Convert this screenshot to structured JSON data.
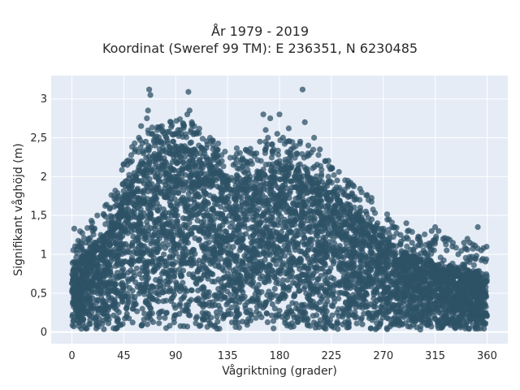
{
  "chart_data": {
    "type": "scatter",
    "title": "År 1979 - 2019",
    "subtitle": "Koordinat (Sweref 99 TM): E 236351, N 6230485",
    "xlabel": "Vågriktning (grader)",
    "ylabel": "Signifikant våghöjd (m)",
    "xlim": [
      -18,
      378
    ],
    "ylim": [
      -0.15,
      3.3
    ],
    "x_ticks": [
      0,
      45,
      90,
      135,
      180,
      225,
      270,
      315,
      360
    ],
    "x_tick_labels": [
      "0",
      "45",
      "90",
      "135",
      "180",
      "225",
      "270",
      "315",
      "360"
    ],
    "y_ticks": [
      0,
      0.5,
      1,
      1.5,
      2,
      2.5,
      3
    ],
    "y_tick_labels": [
      "0",
      "0,5",
      "1",
      "1,5",
      "2",
      "2,5",
      "3"
    ],
    "grid": true,
    "legend": "none",
    "marker_color": "#2e5266",
    "plot_background": "#e5ecf6",
    "envelope": {
      "direction": [
        0,
        10,
        20,
        30,
        40,
        45,
        50,
        60,
        70,
        80,
        90,
        100,
        110,
        120,
        135,
        150,
        165,
        180,
        195,
        210,
        225,
        240,
        255,
        270,
        285,
        300,
        315,
        330,
        345,
        360
      ],
      "max_height": [
        0.9,
        1.0,
        1.15,
        1.3,
        1.6,
        1.85,
        2.0,
        2.2,
        2.3,
        2.35,
        2.4,
        2.4,
        2.3,
        2.15,
        2.05,
        2.0,
        2.1,
        2.15,
        2.1,
        2.0,
        1.85,
        1.65,
        1.45,
        1.25,
        1.05,
        0.95,
        0.9,
        0.85,
        0.8,
        0.75
      ]
    },
    "outliers": {
      "x": [
        2,
        5,
        8,
        12,
        18,
        22,
        25,
        30,
        33,
        36,
        40,
        44,
        48,
        52,
        55,
        58,
        60,
        62,
        64,
        65,
        66,
        67,
        68,
        70,
        72,
        74,
        76,
        78,
        80,
        82,
        85,
        88,
        90,
        92,
        95,
        97,
        100,
        101,
        102,
        104,
        106,
        108,
        110,
        115,
        120,
        125,
        130,
        140,
        145,
        150,
        155,
        160,
        163,
        166,
        168,
        170,
        172,
        175,
        178,
        180,
        183,
        186,
        188,
        190,
        195,
        198,
        200,
        202,
        205,
        210,
        215,
        220,
        225,
        230,
        235,
        240,
        245,
        250,
        255,
        260,
        265,
        270,
        275,
        280,
        285,
        288,
        290,
        295,
        300,
        305,
        310,
        312,
        315,
        318,
        322,
        325,
        330,
        335,
        340,
        343,
        345,
        350,
        352,
        355,
        357
      ],
      "y": [
        1.33,
        1.1,
        1.05,
        1.15,
        1.3,
        1.5,
        1.25,
        1.64,
        1.6,
        1.4,
        1.75,
        1.9,
        2.15,
        2.2,
        2.35,
        2.5,
        2.65,
        2.3,
        2.45,
        2.75,
        2.85,
        3.12,
        3.05,
        2.55,
        2.4,
        2.6,
        2.45,
        2.65,
        2.55,
        2.5,
        2.35,
        2.45,
        2.55,
        2.6,
        2.55,
        2.65,
        2.8,
        3.09,
        2.85,
        2.7,
        2.35,
        2.55,
        2.4,
        2.3,
        2.15,
        2.25,
        2.2,
        2.15,
        2.1,
        2.05,
        2.2,
        2.3,
        2.45,
        2.8,
        2.6,
        2.5,
        2.75,
        2.35,
        2.55,
        2.8,
        2.5,
        2.45,
        2.62,
        2.35,
        2.3,
        2.45,
        3.12,
        2.7,
        2.4,
        2.5,
        2.35,
        2.2,
        2.1,
        1.95,
        1.8,
        1.75,
        1.7,
        1.6,
        1.55,
        1.45,
        1.4,
        1.3,
        1.45,
        1.35,
        1.25,
        1.2,
        1.4,
        1.15,
        1.2,
        1.05,
        1.1,
        1.3,
        1.35,
        1.3,
        1.2,
        1.05,
        1.1,
        1.0,
        1.15,
        1.2,
        1.15,
        0.95,
        1.35,
        1.05,
        1.08
      ]
    }
  }
}
